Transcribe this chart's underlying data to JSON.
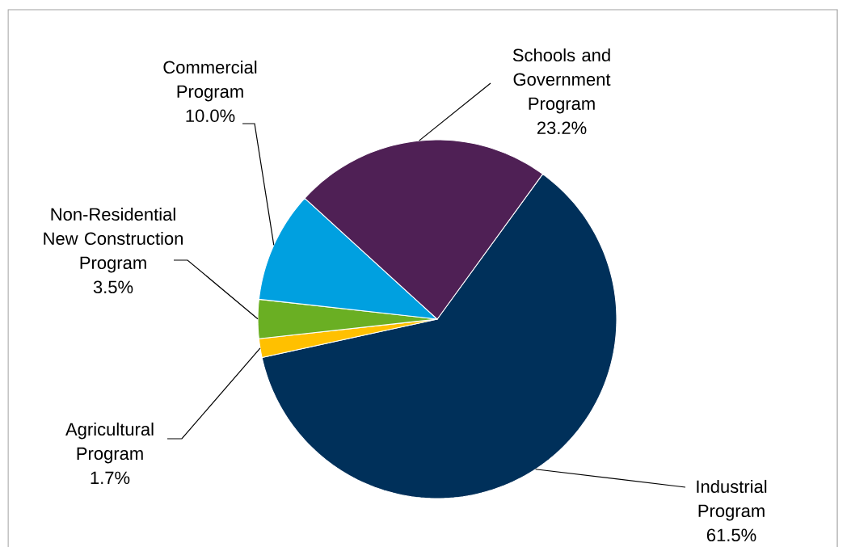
{
  "chart_data": {
    "type": "pie",
    "categories": [
      "Industrial Program",
      "Agricultural Program",
      "Non-Residential New Construction Program",
      "Commercial Program",
      "Schools and Government Program"
    ],
    "values": [
      61.5,
      1.7,
      3.5,
      10.0,
      23.2
    ],
    "value_labels": [
      "61.5%",
      "1.7%",
      "3.5%",
      "10.0%",
      "23.2%"
    ],
    "colors": [
      "#00305a",
      "#ffc000",
      "#6aaf23",
      "#00a0e0",
      "#4f2055"
    ]
  }
}
